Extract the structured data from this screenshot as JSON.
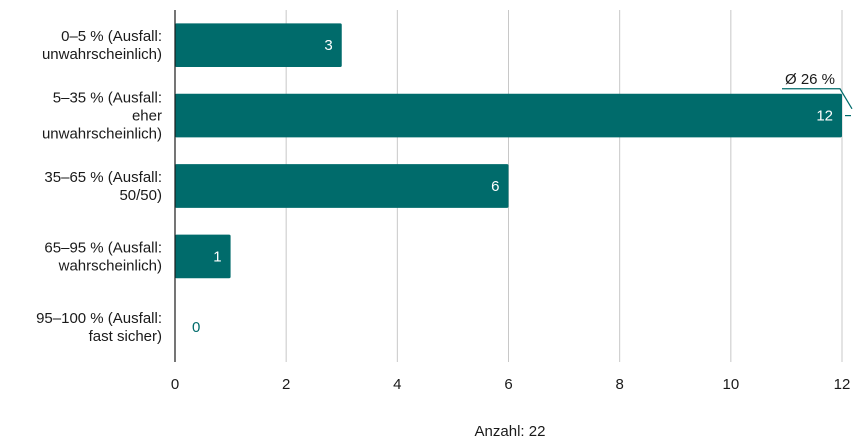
{
  "chart_data": {
    "type": "bar",
    "orientation": "horizontal",
    "categories": [
      [
        "0–5 % (Ausfall:",
        "unwahrscheinlich)"
      ],
      [
        "5–35 % (Ausfall:",
        "eher",
        "unwahrscheinlich)"
      ],
      [
        "35–65 % (Ausfall:",
        "50/50)"
      ],
      [
        "65–95 % (Ausfall:",
        "wahrscheinlich)"
      ],
      [
        "95–100 % (Ausfall:",
        "fast sicher)"
      ]
    ],
    "values": [
      3,
      12,
      6,
      1,
      0
    ],
    "xlim": [
      0,
      12
    ],
    "xticks": [
      0,
      2,
      4,
      6,
      8,
      10,
      12
    ],
    "grid": true,
    "bar_color": "#006b6b",
    "average_annotation": "Ø 26 %",
    "footnote": "Anzahl: 22"
  }
}
